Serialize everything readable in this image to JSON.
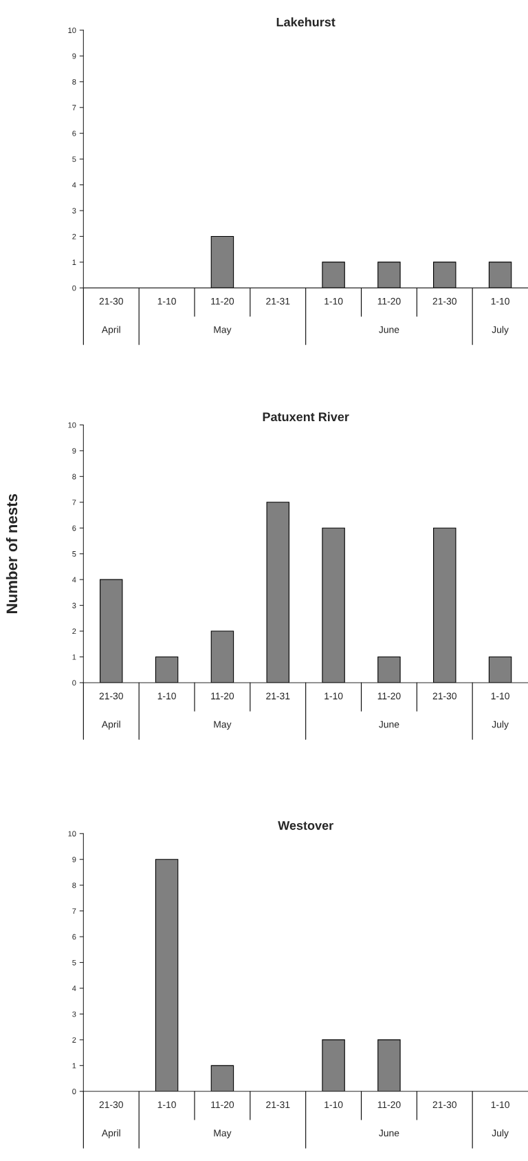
{
  "chart_data": [
    {
      "type": "bar",
      "title": "Lakehurst",
      "categories": [
        "21-30",
        "1-10",
        "11-20",
        "21-31",
        "1-10",
        "11-20",
        "21-30",
        "1-10"
      ],
      "values": [
        0,
        0,
        2,
        0,
        1,
        1,
        1,
        1
      ],
      "color": "#808080",
      "ylim": [
        0,
        10
      ],
      "yticks": [
        0,
        1,
        2,
        3,
        4,
        5,
        6,
        7,
        8,
        9,
        10
      ],
      "grid": false,
      "annotations": [
        "April",
        "May",
        "June",
        "July"
      ]
    },
    {
      "type": "bar",
      "title": "Patuxent River",
      "ylabel": "Number of nests",
      "categories": [
        "21-30",
        "1-10",
        "11-20",
        "21-31",
        "1-10",
        "11-20",
        "21-30",
        "1-10"
      ],
      "values": [
        4,
        1,
        2,
        7,
        6,
        1,
        6,
        1
      ],
      "color": "#808080",
      "ylim": [
        0,
        10
      ],
      "yticks": [
        0,
        1,
        2,
        3,
        4,
        5,
        6,
        7,
        8,
        9,
        10
      ],
      "grid": false,
      "annotations": [
        "April",
        "May",
        "June",
        "July"
      ]
    },
    {
      "type": "bar",
      "title": "Westover",
      "categories": [
        "21-30",
        "1-10",
        "11-20",
        "21-31",
        "1-10",
        "11-20",
        "21-30",
        "1-10"
      ],
      "values": [
        0,
        9,
        1,
        0,
        2,
        2,
        0,
        0
      ],
      "color": "#808080",
      "ylim": [
        0,
        10
      ],
      "yticks": [
        0,
        1,
        2,
        3,
        4,
        5,
        6,
        7,
        8,
        9,
        10
      ],
      "grid": false,
      "annotations": [
        "April",
        "May",
        "June",
        "July"
      ]
    }
  ]
}
